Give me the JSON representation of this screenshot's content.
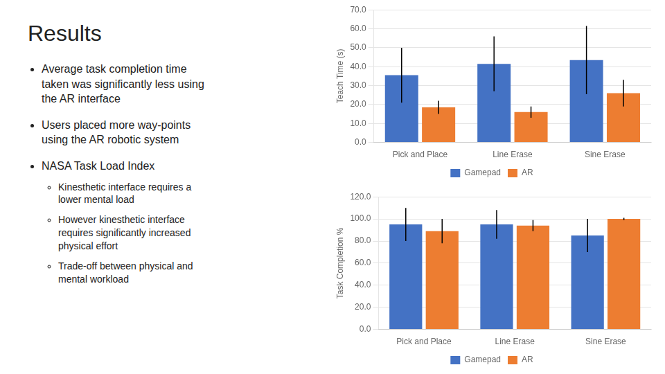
{
  "title": "Results",
  "annotations": [
    "Average task completion time\ntaken was significantly less using\nthe AR interface",
    "Users placed more way-points\nusing the AR robotic system",
    {
      "text": "NASA Task Load Index",
      "annotations": [
        "Kinesthetic interface requires a\nlower mental load",
        "However kinesthetic interface\nrequires significantly increased\nphysical effort",
        "Trade-off between physical and\nmental workload"
      ]
    }
  ],
  "chart_data": [
    {
      "type": "bar",
      "ylabel": "Teach Time (s)",
      "categories": [
        "Pick and Place",
        "Line Erase",
        "Sine Erase"
      ],
      "series": [
        {
          "name": "Gamepad",
          "color": "#4472C4",
          "values": [
            35.5,
            41.5,
            43.5
          ],
          "errors": [
            14.5,
            14.5,
            18.0
          ]
        },
        {
          "name": "AR",
          "color": "#ED7D31",
          "values": [
            18.5,
            16.0,
            26.0
          ],
          "errors": [
            3.5,
            3.0,
            7.0
          ]
        }
      ],
      "ylim": [
        0,
        70
      ],
      "yticks": [
        {
          "value": 0,
          "label": "0.0"
        },
        {
          "value": 10,
          "label": "10.0"
        },
        {
          "value": 20,
          "label": "20.0"
        },
        {
          "value": 30,
          "label": "30.0"
        },
        {
          "value": 40,
          "label": "40.0"
        },
        {
          "value": 50,
          "label": "50.0"
        },
        {
          "value": 60,
          "label": "60.0"
        },
        {
          "value": 70,
          "label": "70.0"
        }
      ],
      "grid": true,
      "legend": "bottom"
    },
    {
      "type": "bar",
      "ylabel": "Task Completion %",
      "categories": [
        "Pick and Place",
        "Line Erase",
        "Sine Erase"
      ],
      "series": [
        {
          "name": "Gamepad",
          "color": "#4472C4",
          "values": [
            95.0,
            95.0,
            85.0
          ],
          "errors": [
            15.0,
            13.0,
            15.0
          ]
        },
        {
          "name": "AR",
          "color": "#ED7D31",
          "values": [
            89.0,
            94.0,
            100.0
          ],
          "errors": [
            11.0,
            5.0,
            1.0
          ]
        }
      ],
      "ylim": [
        0,
        120
      ],
      "yticks": [
        {
          "value": 0,
          "label": "0.0"
        },
        {
          "value": 20,
          "label": "20.0"
        },
        {
          "value": 40,
          "label": "40.0"
        },
        {
          "value": 60,
          "label": "60.0"
        },
        {
          "value": 80,
          "label": "80.0"
        },
        {
          "value": 100,
          "label": "100.0"
        },
        {
          "value": 120,
          "label": "120.0"
        }
      ],
      "grid": true,
      "legend": "bottom"
    }
  ]
}
